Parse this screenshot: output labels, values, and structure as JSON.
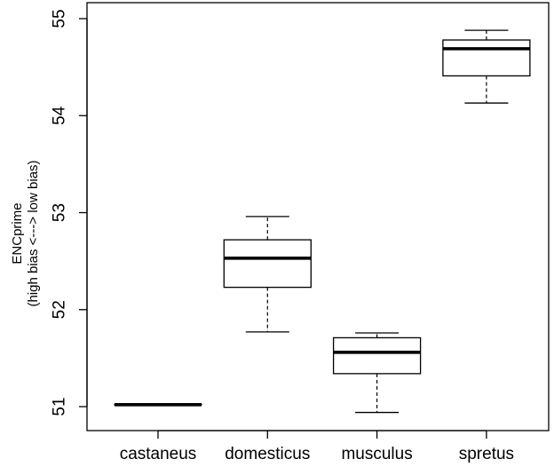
{
  "chart_data": {
    "type": "boxplot",
    "title": "",
    "xlabel": "",
    "ylabel_lines": [
      "ENCprime",
      "(high bias <---> low bias)"
    ],
    "ylim": [
      51,
      55
    ],
    "yticks": [
      51,
      52,
      53,
      54,
      55
    ],
    "ytick_labels": [
      "51",
      "52",
      "53",
      "54",
      "55"
    ],
    "categories": [
      "castaneus",
      "domesticus",
      "musculus",
      "spretus"
    ],
    "boxes": [
      {
        "name": "castaneus",
        "min": 51.02,
        "q1": 51.02,
        "median": 51.02,
        "q3": 51.02,
        "max": 51.02
      },
      {
        "name": "domesticus",
        "min": 51.77,
        "q1": 52.23,
        "median": 52.53,
        "q3": 52.72,
        "max": 52.96
      },
      {
        "name": "musculus",
        "min": 50.94,
        "q1": 51.34,
        "median": 51.56,
        "q3": 51.71,
        "max": 51.76
      },
      {
        "name": "spretus",
        "min": 54.13,
        "q1": 54.41,
        "median": 54.69,
        "q3": 54.78,
        "max": 54.88
      }
    ],
    "grid": false,
    "legend": "none"
  }
}
